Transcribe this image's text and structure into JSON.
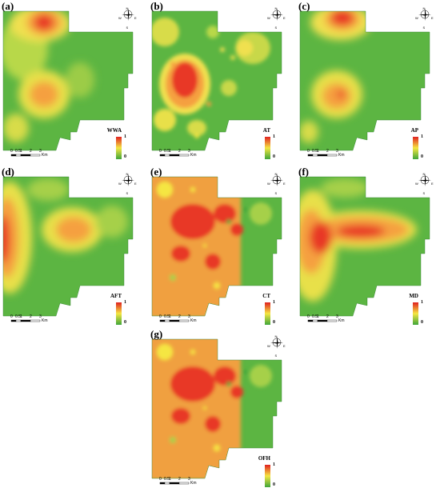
{
  "panels": [
    {
      "label": "(a)",
      "legend_title": "WWA",
      "legend_max": "1",
      "legend_min": "0"
    },
    {
      "label": "(b)",
      "legend_title": "AT",
      "legend_max": "1",
      "legend_min": "0"
    },
    {
      "label": "(c)",
      "legend_title": "AP",
      "legend_max": "1",
      "legend_min": "0"
    },
    {
      "label": "(d)",
      "legend_title": "AFT",
      "legend_max": "1",
      "legend_min": "0"
    },
    {
      "label": "(e)",
      "legend_title": "CT",
      "legend_max": "1",
      "legend_min": "0"
    },
    {
      "label": "(f)",
      "legend_title": "MD",
      "legend_max": "1",
      "legend_min": "0"
    },
    {
      "label": "(g)",
      "legend_title": "OFH",
      "legend_max": "1",
      "legend_min": "0"
    }
  ],
  "scale_bar": {
    "ticks": [
      "0",
      "0.5",
      "1",
      "2",
      "3"
    ],
    "unit": "Km"
  },
  "compass": {
    "n": "N",
    "s": "S",
    "e": "E",
    "w": "W"
  },
  "colors": {
    "high": "#e02020",
    "mid": "#f5e642",
    "low": "#3fa63a"
  }
}
